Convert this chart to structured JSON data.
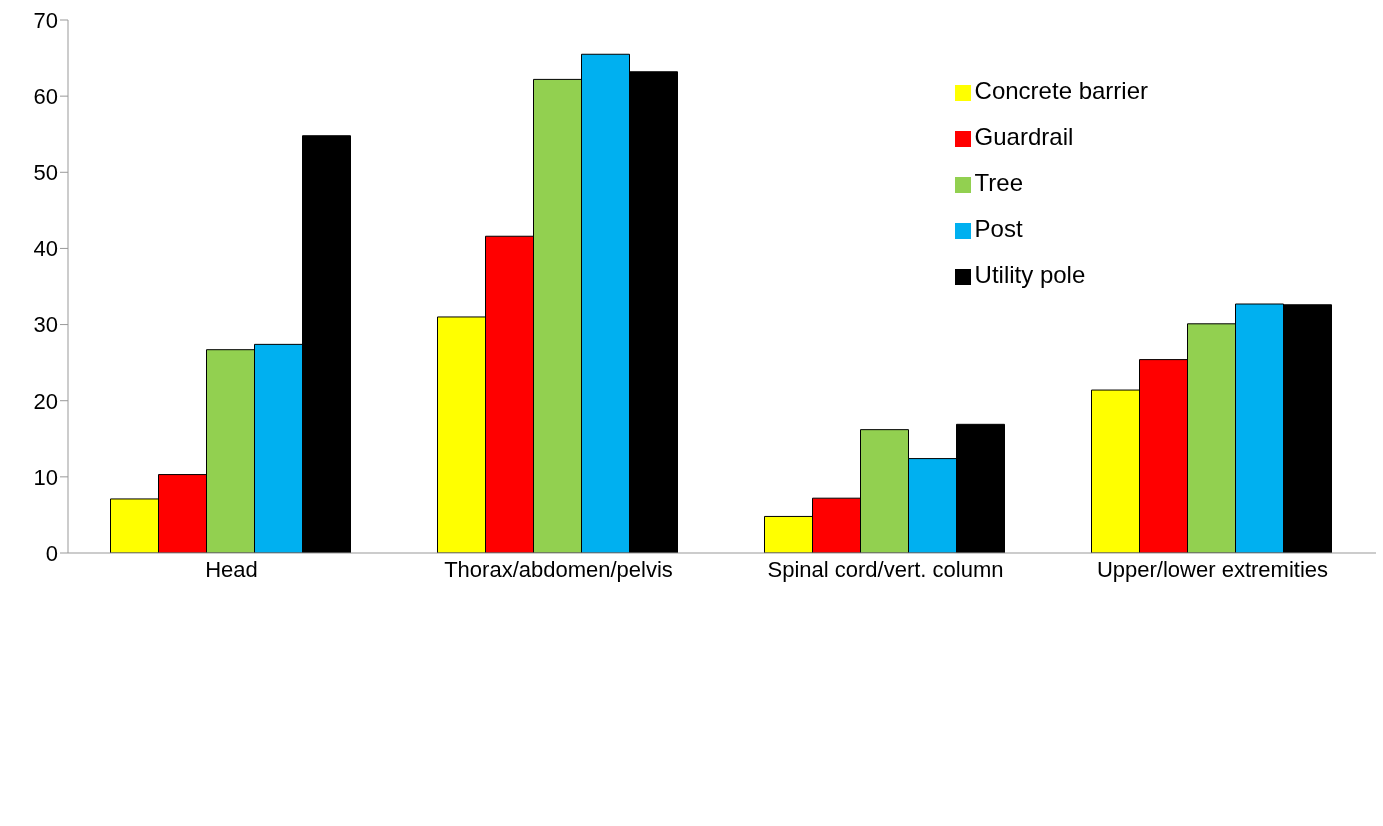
{
  "chart_data": {
    "type": "bar",
    "categories": [
      "Head",
      "Thorax/abdomen/pelvis",
      "Spinal cord/vert. column",
      "Upper/lower extremities"
    ],
    "series": [
      {
        "name": "Concrete barrier",
        "color": "#ffff00",
        "values": [
          7.1,
          31.0,
          4.8,
          21.4
        ]
      },
      {
        "name": "Guardrail",
        "color": "#ff0000",
        "values": [
          10.3,
          41.6,
          7.2,
          25.4
        ]
      },
      {
        "name": "Tree",
        "color": "#92d050",
        "values": [
          26.7,
          62.2,
          16.2,
          30.1
        ]
      },
      {
        "name": "Post",
        "color": "#00b0f0",
        "values": [
          27.4,
          65.5,
          12.4,
          32.7
        ]
      },
      {
        "name": "Utility pole",
        "color": "#000000",
        "values": [
          54.8,
          63.2,
          16.9,
          32.6
        ]
      }
    ],
    "ylim": [
      0,
      70
    ],
    "yticks": [
      0,
      10,
      20,
      30,
      40,
      50,
      60,
      70
    ],
    "grid": false,
    "legend": "top right"
  }
}
